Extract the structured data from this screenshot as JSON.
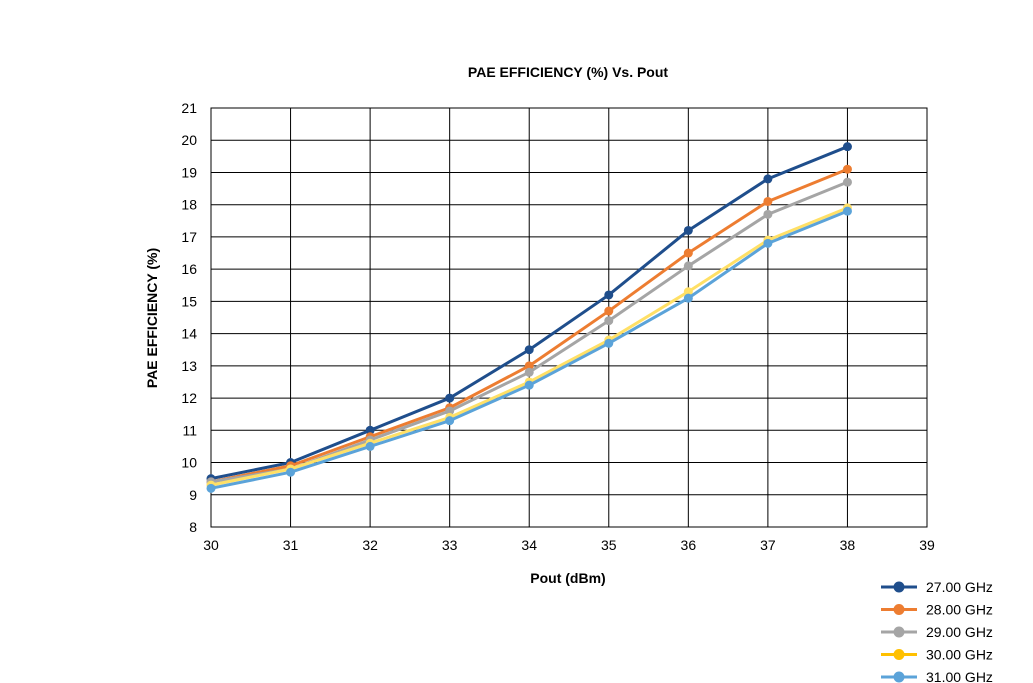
{
  "chart_data": {
    "type": "line",
    "title": "PAE EFFICIENCY (%) Vs. Pout",
    "xlabel": "Pout (dBm)",
    "ylabel": "PAE EFFICIENCY (%)",
    "xlim": [
      30,
      39
    ],
    "ylim": [
      8,
      21
    ],
    "xticks": [
      30,
      31,
      32,
      33,
      34,
      35,
      36,
      37,
      38,
      39
    ],
    "yticks": [
      8,
      9,
      10,
      11,
      12,
      13,
      14,
      15,
      16,
      17,
      18,
      19,
      20,
      21
    ],
    "grid": true,
    "legend_position": "bottom-right",
    "x": [
      30,
      31,
      32,
      33,
      34,
      35,
      36,
      37,
      38
    ],
    "series": [
      {
        "name": "27.00 GHz",
        "color": "#1f4e8c",
        "marker_color": "#1f4e8c",
        "values": [
          9.5,
          10.0,
          11.0,
          12.0,
          13.5,
          15.2,
          17.2,
          18.8,
          19.8
        ]
      },
      {
        "name": "28.00 GHz",
        "color": "#ed7d31",
        "marker_color": "#ed7d31",
        "values": [
          9.4,
          9.9,
          10.8,
          11.7,
          13.0,
          14.7,
          16.5,
          18.1,
          19.1
        ]
      },
      {
        "name": "29.00 GHz",
        "color": "#a5a5a5",
        "marker_color": "#a5a5a5",
        "values": [
          9.4,
          9.8,
          10.7,
          11.6,
          12.8,
          14.4,
          16.1,
          17.7,
          18.7
        ]
      },
      {
        "name": "30.00 GHz",
        "color": "#ffc000",
        "line_color": "#ffe066",
        "marker_color": "#ffe066",
        "values": [
          9.3,
          9.8,
          10.6,
          11.4,
          12.5,
          13.8,
          15.3,
          16.9,
          17.9
        ]
      },
      {
        "name": "31.00 GHz",
        "color": "#5ba3d9",
        "marker_color": "#5ba3d9",
        "values": [
          9.2,
          9.7,
          10.5,
          11.3,
          12.4,
          13.7,
          15.1,
          16.8,
          17.8
        ]
      }
    ]
  }
}
